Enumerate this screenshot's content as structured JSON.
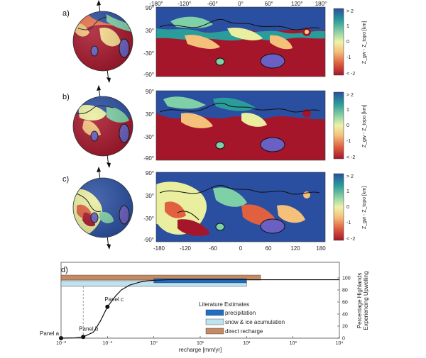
{
  "figure": {
    "panels": [
      {
        "letter": "a)"
      },
      {
        "letter": "b)"
      },
      {
        "letter": "c)"
      }
    ],
    "map_lon_ticks_top": [
      "-180°",
      "-120°",
      "-60°",
      "0°",
      "60°",
      "120°",
      "180°"
    ],
    "map_lon_ticks_bottom": [
      "-180",
      "-120",
      "-60",
      "0",
      "60",
      "120",
      "180"
    ],
    "map_lat_ticks": [
      "90°",
      "30°",
      "-30°",
      "-90°"
    ],
    "colorbar": {
      "ticks": [
        "> 2",
        "1",
        "0",
        "-1",
        "< -2"
      ],
      "title": "Z_gw - Z_topo [km]",
      "colors": [
        "#2166ac",
        "#2a9d9b",
        "#7fd0a6",
        "#e9ef9f",
        "#f6c57a",
        "#e8714a",
        "#b2182b"
      ]
    },
    "panel_d": {
      "letter": "d)",
      "xlabel": "recharge [mm/yr]",
      "ylabel_line1": "Percentage Highlands",
      "ylabel_line2": "Experiencing Upwelling",
      "x_ticks": [
        "10⁻²",
        "10⁻¹",
        "10⁰",
        "10¹",
        "10²",
        "10³",
        "10⁴"
      ],
      "y_ticks": [
        "0",
        "20",
        "40",
        "60",
        "80",
        "100"
      ],
      "points": [
        {
          "label": "Panel a",
          "x": 0.01,
          "y": 0
        },
        {
          "label": "Panel b",
          "x": 0.03,
          "y": 2
        },
        {
          "label": "Panel c",
          "x": 0.1,
          "y": 52
        }
      ],
      "legend_title": "Literature Estimates",
      "legend": [
        {
          "label": "precipitation",
          "color": "#1f6fc4"
        },
        {
          "label": "snow & ice acumulation",
          "color": "#bfe2ef"
        },
        {
          "label": "direct recharge",
          "color": "#c48a63"
        }
      ]
    }
  },
  "chart_data": {
    "type": "line",
    "xlabel": "recharge [mm/yr]",
    "ylabel": "Percentage Highlands Experiencing Upwelling",
    "xscale": "log",
    "xlim": [
      0.01,
      10000
    ],
    "ylim": [
      0,
      100
    ],
    "curve": {
      "x": [
        0.01,
        0.02,
        0.03,
        0.05,
        0.07,
        0.1,
        0.15,
        0.2,
        0.3,
        0.5,
        0.7,
        1,
        2,
        5,
        10000
      ],
      "y": [
        0,
        0.5,
        2,
        10,
        28,
        52,
        70,
        80,
        88,
        93,
        95,
        96,
        97,
        97,
        97
      ]
    },
    "vertical_line_x": 0.03,
    "ranges": [
      {
        "name": "direct recharge",
        "x": [
          0.01,
          200
        ]
      },
      {
        "name": "snow & ice acumulation",
        "x": [
          0.01,
          100
        ]
      },
      {
        "name": "precipitation",
        "x": [
          1,
          100
        ]
      }
    ]
  }
}
